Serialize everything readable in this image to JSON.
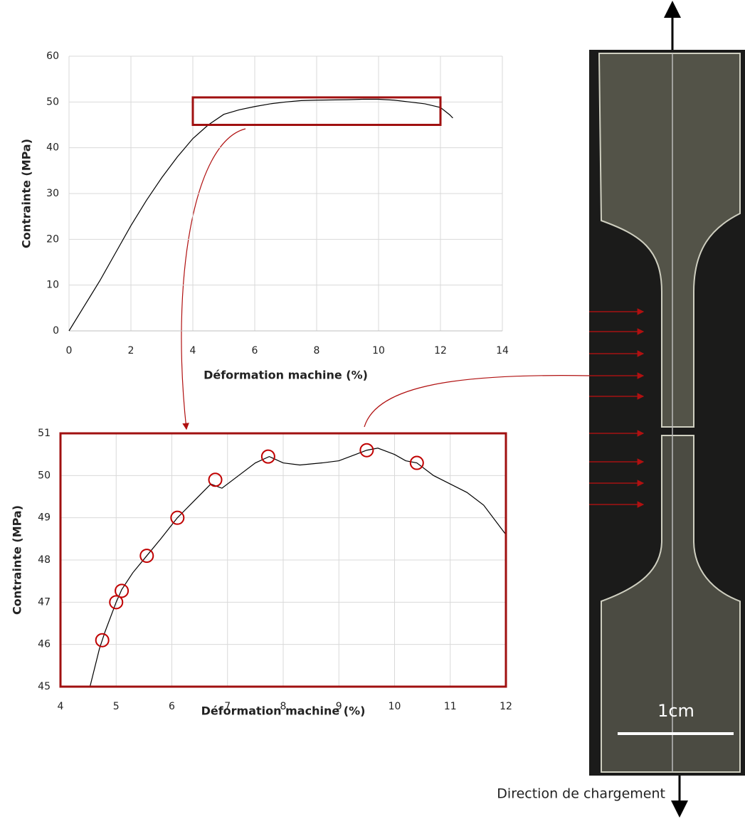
{
  "chart_data": [
    {
      "type": "line",
      "x_label": "Déformation machine (%)",
      "y_label": "Contrainte (MPa)",
      "color": "#000000",
      "grid": true,
      "x": [
        0,
        0.5,
        1,
        1.5,
        2,
        2.5,
        3,
        3.5,
        4,
        4.5,
        5,
        5.5,
        6,
        6.5,
        7,
        7.5,
        8,
        9,
        9.5,
        10,
        10.5,
        11,
        11.5,
        12,
        12.3,
        12.4
      ],
      "values": [
        0,
        5.5,
        11,
        17,
        23,
        28.5,
        33.5,
        38,
        42,
        45,
        47.3,
        48.3,
        49,
        49.6,
        50,
        50.3,
        50.4,
        50.5,
        50.6,
        50.6,
        50.4,
        50,
        49.6,
        48.8,
        47.2,
        46.5
      ],
      "xlim": [
        0,
        14
      ],
      "xticks": [
        0,
        2,
        4,
        6,
        8,
        10,
        12,
        14
      ],
      "ylim": [
        0,
        60
      ],
      "yticks": [
        0,
        10,
        20,
        30,
        40,
        50,
        60
      ]
    },
    {
      "type": "line",
      "x_label": "Déformation machine (%)",
      "y_label": "Contrainte (MPa)",
      "color": "#000000",
      "grid": true,
      "x": [
        4.53,
        4.7,
        4.8,
        5,
        5.1,
        5.3,
        5.55,
        5.8,
        6.1,
        6.4,
        6.7,
        6.8,
        6.9,
        7.2,
        7.5,
        7.75,
        8,
        8.3,
        8.7,
        9,
        9.3,
        9.5,
        9.7,
        10,
        10.2,
        10.4,
        10.7,
        11,
        11.3,
        11.6,
        12
      ],
      "values": [
        45,
        45.9,
        46.3,
        47,
        47.3,
        47.7,
        48.1,
        48.5,
        49,
        49.4,
        49.8,
        49.75,
        49.7,
        50,
        50.3,
        50.45,
        50.3,
        50.25,
        50.3,
        50.35,
        50.5,
        50.6,
        50.65,
        50.5,
        50.35,
        50.3,
        50,
        49.8,
        49.6,
        49.3,
        48.6
      ],
      "highlights": {
        "color": "#c00000",
        "x": [
          4.75,
          5,
          5.1,
          5.55,
          6.1,
          6.78,
          7.73,
          9.5,
          10.4
        ],
        "values": [
          46.1,
          47,
          47.27,
          48.1,
          49,
          49.9,
          50.45,
          50.6,
          50.3
        ]
      },
      "xlim": [
        4,
        12
      ],
      "xticks": [
        4,
        5,
        6,
        7,
        8,
        9,
        10,
        11,
        12
      ],
      "ylim": [
        45,
        51
      ],
      "yticks": [
        45,
        46,
        47,
        48,
        49,
        50,
        51
      ]
    }
  ],
  "photo": {
    "scale_label": "1cm",
    "caption": "Direction de chargement"
  }
}
